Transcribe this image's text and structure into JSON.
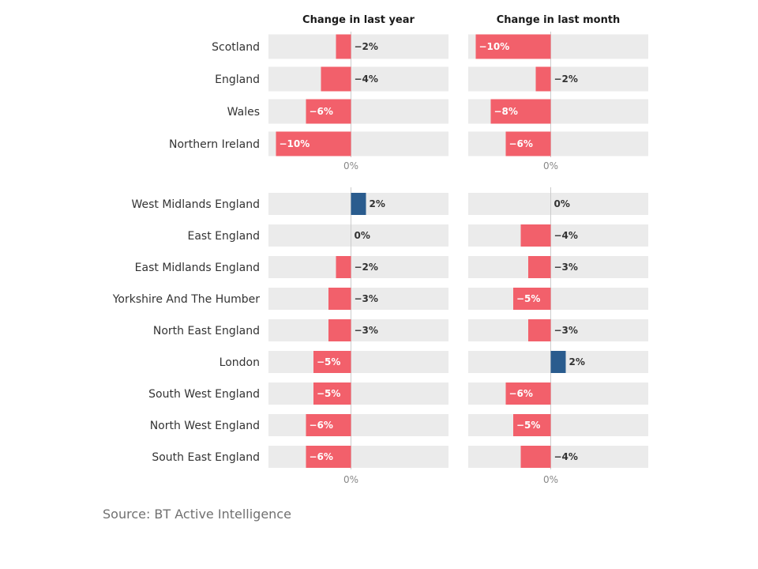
{
  "chart_data": {
    "type": "bar",
    "orientation": "horizontal",
    "columns": [
      "Change in last year",
      "Change in last month"
    ],
    "zero_label": "0%",
    "unit": "%",
    "xlim": [
      -11,
      13
    ],
    "colors": {
      "negative": "#f2606b",
      "positive": "#2a5c8e",
      "track": "#ebebeb",
      "axis": "#cccccc"
    },
    "groups": [
      {
        "rows": [
          {
            "label": "Scotland",
            "values": [
              -2,
              -10
            ],
            "value_labels": [
              "−2%",
              "−10%"
            ]
          },
          {
            "label": "England",
            "values": [
              -4,
              -2
            ],
            "value_labels": [
              "−4%",
              "−2%"
            ]
          },
          {
            "label": "Wales",
            "values": [
              -6,
              -8
            ],
            "value_labels": [
              "−6%",
              "−8%"
            ]
          },
          {
            "label": "Northern Ireland",
            "values": [
              -10,
              -6
            ],
            "value_labels": [
              "−10%",
              "−6%"
            ]
          }
        ]
      },
      {
        "rows": [
          {
            "label": "West Midlands England",
            "values": [
              2,
              0
            ],
            "value_labels": [
              "2%",
              "0%"
            ]
          },
          {
            "label": "East England",
            "values": [
              0,
              -4
            ],
            "value_labels": [
              "0%",
              "−4%"
            ]
          },
          {
            "label": "East Midlands England",
            "values": [
              -2,
              -3
            ],
            "value_labels": [
              "−2%",
              "−3%"
            ]
          },
          {
            "label": "Yorkshire And The Humber",
            "values": [
              -3,
              -5
            ],
            "value_labels": [
              "−3%",
              "−5%"
            ]
          },
          {
            "label": "North East England",
            "values": [
              -3,
              -3
            ],
            "value_labels": [
              "−3%",
              "−3%"
            ]
          },
          {
            "label": "London",
            "values": [
              -5,
              2
            ],
            "value_labels": [
              "−5%",
              "2%"
            ]
          },
          {
            "label": "South West England",
            "values": [
              -5,
              -6
            ],
            "value_labels": [
              "−5%",
              "−6%"
            ]
          },
          {
            "label": "North West England",
            "values": [
              -6,
              -5
            ],
            "value_labels": [
              "−6%",
              "−5%"
            ]
          },
          {
            "label": "South East England",
            "values": [
              -6,
              -4
            ],
            "value_labels": [
              "−6%",
              "−4%"
            ]
          }
        ]
      }
    ]
  },
  "source": "Source: BT Active Intelligence"
}
